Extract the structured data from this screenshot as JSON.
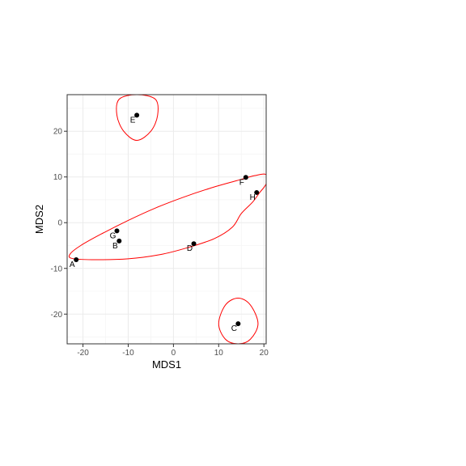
{
  "chart_data": {
    "type": "scatter",
    "title": "",
    "xlabel": "MDS1",
    "ylabel": "MDS2",
    "xlim": [
      -23.5,
      20.5
    ],
    "ylim": [
      -26.5,
      28
    ],
    "x_ticks": [
      -20,
      -10,
      0,
      10,
      20
    ],
    "y_ticks": [
      -20,
      -10,
      0,
      10,
      20
    ],
    "x_tick_labels": [
      "-20",
      "-10",
      "0",
      "10",
      "20"
    ],
    "y_tick_labels": [
      "-20",
      "-10",
      "0",
      "10",
      "20"
    ],
    "grid": true,
    "point_color": "#000000",
    "ellipse_color": "#ff0000",
    "points": [
      {
        "label": "A",
        "x": -21.5,
        "y": -8.1
      },
      {
        "label": "B",
        "x": -12.0,
        "y": -4.0
      },
      {
        "label": "C",
        "x": 14.3,
        "y": -22.1
      },
      {
        "label": "D",
        "x": 4.5,
        "y": -4.6
      },
      {
        "label": "E",
        "x": -8.1,
        "y": 23.5
      },
      {
        "label": "F",
        "x": 16.0,
        "y": 9.9
      },
      {
        "label": "H",
        "x": 18.4,
        "y": 6.6
      },
      {
        "label": "G",
        "x": -12.5,
        "y": -1.8
      }
    ],
    "ellipses": [
      {
        "name": "",
        "points": [
          [
            -22.5,
            -7.8
          ],
          [
            -18,
            -8.1
          ],
          [
            -10,
            -7.9
          ],
          [
            -3,
            -7.0
          ],
          [
            3,
            -5.5
          ],
          [
            9,
            -3.5
          ],
          [
            13,
            -1.0
          ],
          [
            15,
            2.0
          ],
          [
            17.5,
            4.5
          ],
          [
            19,
            6.5
          ],
          [
            20.5,
            8.5
          ],
          [
            20.5,
            10.5
          ],
          [
            18,
            10.3
          ],
          [
            14,
            9.2
          ],
          [
            8,
            7.5
          ],
          [
            2,
            5.5
          ],
          [
            -4,
            3.2
          ],
          [
            -10,
            0.5
          ],
          [
            -16,
            -2.5
          ],
          [
            -20.5,
            -5.0
          ],
          [
            -22.8,
            -6.8
          ]
        ]
      },
      {
        "name": "",
        "points": [
          [
            -8.1,
            28
          ],
          [
            -4,
            27
          ],
          [
            -3.5,
            23.5
          ],
          [
            -5,
            20
          ],
          [
            -8.1,
            18
          ],
          [
            -11,
            20
          ],
          [
            -12.5,
            23.5
          ],
          [
            -12,
            27
          ]
        ]
      },
      {
        "name": "",
        "points": [
          [
            14.3,
            -16.5
          ],
          [
            17,
            -18
          ],
          [
            18.7,
            -22.1
          ],
          [
            17,
            -25.5
          ],
          [
            14.3,
            -26.5
          ],
          [
            11.5,
            -25.5
          ],
          [
            10,
            -22.1
          ],
          [
            11.5,
            -18
          ]
        ]
      }
    ]
  }
}
